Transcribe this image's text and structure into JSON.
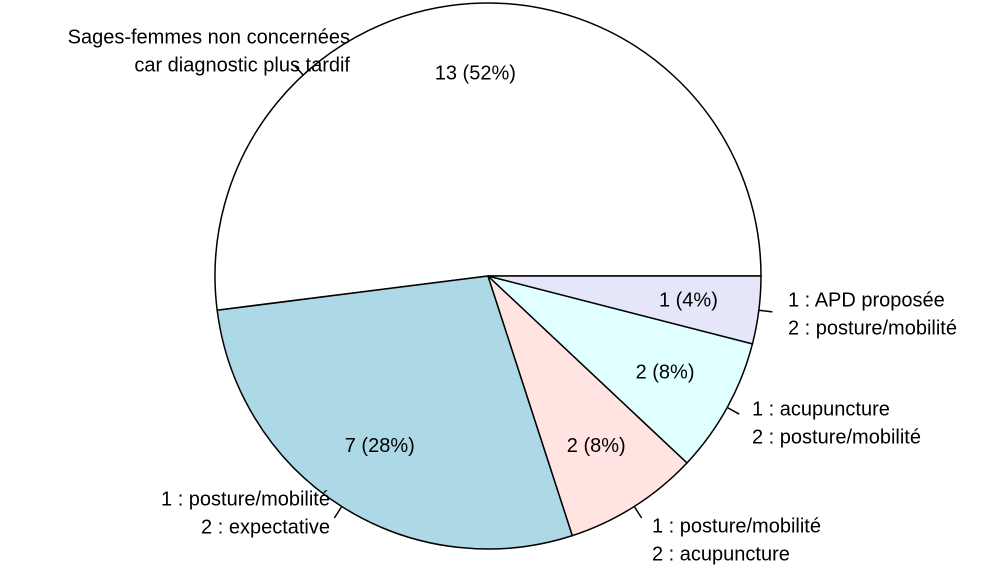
{
  "chart_data": {
    "type": "pie",
    "categories": [
      [
        "Sages-femmes non concernées",
        "car diagnostic plus tardif"
      ],
      [
        "1 : posture/mobilité",
        "2 : expectative"
      ],
      [
        "1 : posture/mobilité",
        "2 : acupuncture"
      ],
      [
        "1 : acupuncture",
        "2 : posture/mobilité"
      ],
      [
        "1 : APD proposée",
        "2 : posture/mobilité"
      ]
    ],
    "values": [
      13,
      7,
      2,
      2,
      1
    ],
    "value_labels": [
      "13 (52%)",
      "7 (28%)",
      "2 (8%)",
      "2 (8%)",
      "1 (4%)"
    ],
    "colors": [
      "#ffffff",
      "#add8e6",
      "#ffe4e1",
      "#e0ffff",
      "#e6e6fa"
    ]
  }
}
